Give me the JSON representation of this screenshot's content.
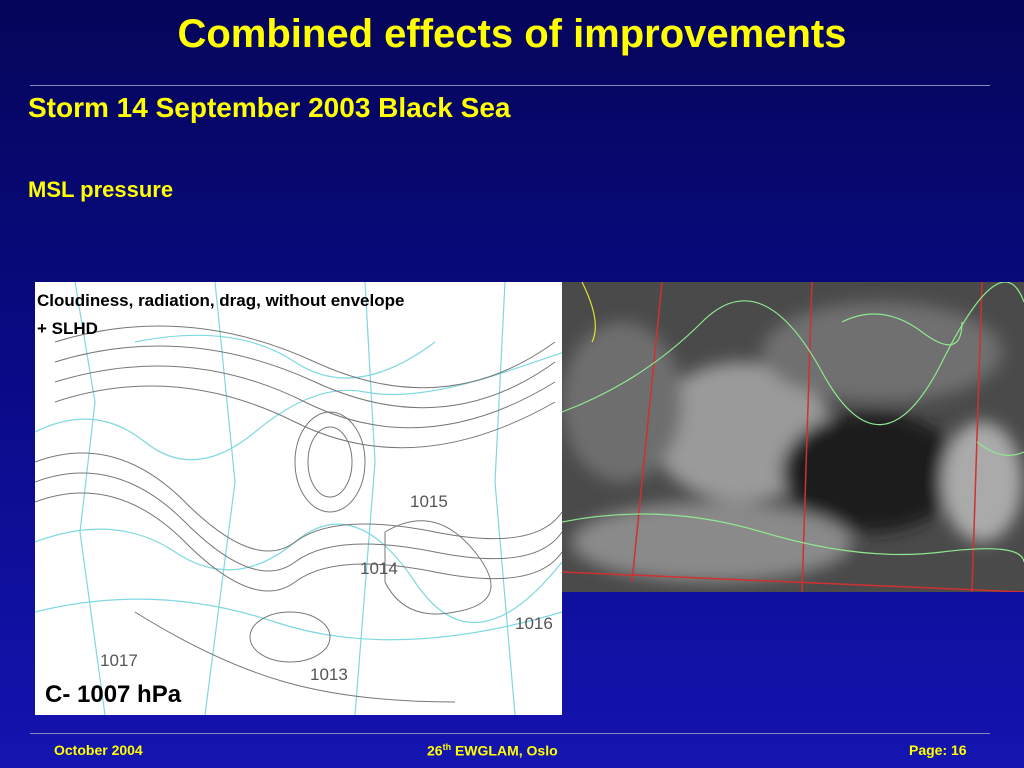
{
  "header": {
    "title": "Combined effects of improvements",
    "subtitle": "Storm 14 September 2003 Black Sea",
    "section": "MSL pressure"
  },
  "map": {
    "caption_line1": "Cloudiness, radiation, drag, without envelope",
    "caption_line2": "+ SLHD",
    "center_label": "C- 1007 hPa",
    "isobar_labels": [
      "1015",
      "1014",
      "1017",
      "1013",
      "1016"
    ]
  },
  "footer": {
    "date": "October 2004",
    "event_number": "26",
    "event_suffix": "th",
    "event_name": " EWGLAM, Oslo",
    "page": "Page: 16"
  }
}
